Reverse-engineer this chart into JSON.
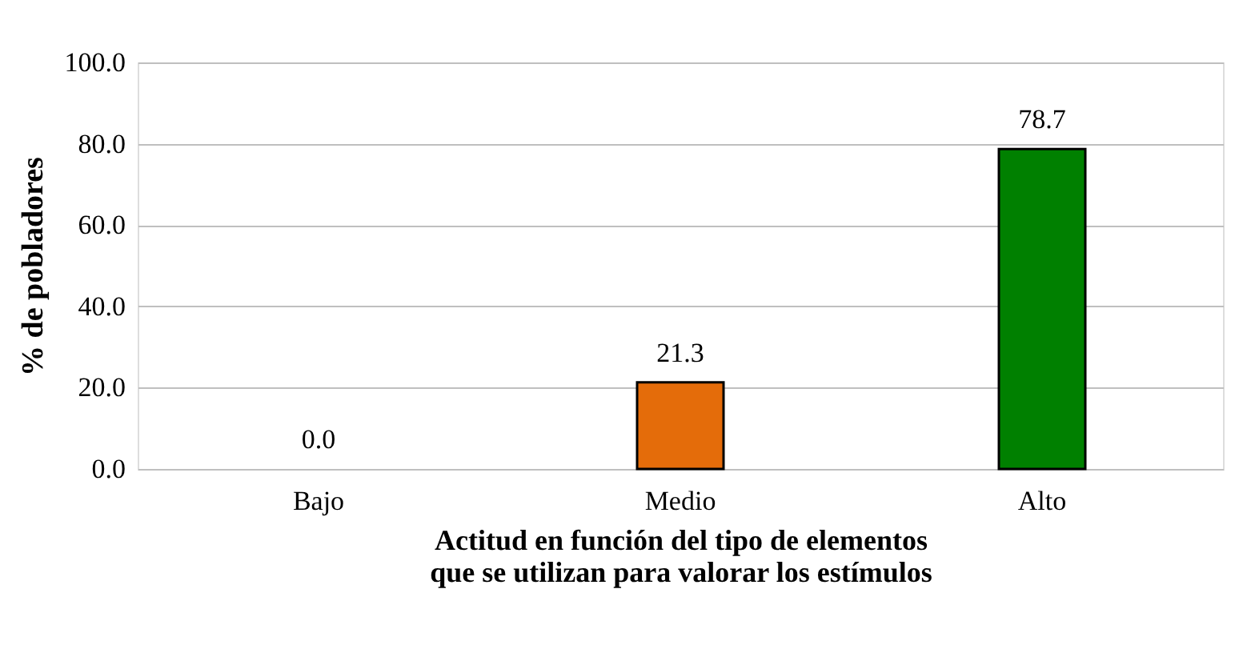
{
  "chart_data": {
    "type": "bar",
    "categories": [
      "Bajo",
      "Medio",
      "Alto"
    ],
    "values": [
      0.0,
      21.3,
      78.7
    ],
    "colors": [
      null,
      "#e46c0a",
      "#008000"
    ],
    "xlabel": "Actitud en función del tipo de elementos que se utilizan para valorar los estímulos",
    "ylabel": "% de pobladores",
    "ylim": [
      0,
      100
    ],
    "yticks": [
      {
        "value": 0,
        "label": "0.0"
      },
      {
        "value": 20,
        "label": "20.0"
      },
      {
        "value": 40,
        "label": "40.0"
      },
      {
        "value": 60,
        "label": "60.0"
      },
      {
        "value": 80,
        "label": "80.0"
      },
      {
        "value": 100,
        "label": "100.0"
      }
    ],
    "grid": "y",
    "value_labels": [
      "0.0",
      "21.3",
      "78.7"
    ]
  }
}
